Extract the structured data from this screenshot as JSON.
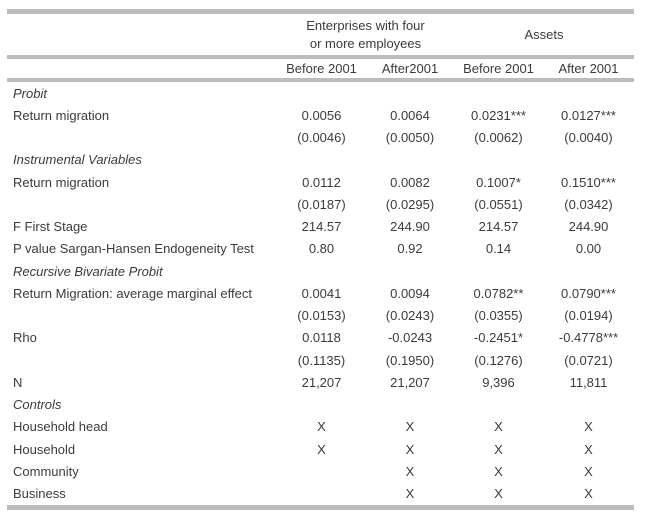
{
  "table": {
    "header": {
      "groups": [
        {
          "label": "Enterprises with four or more employees"
        },
        {
          "label": "Assets"
        }
      ],
      "columns": [
        "Before 2001",
        "After2001",
        "Before 2001",
        "After 2001"
      ]
    },
    "rows": [
      {
        "label": "Probit",
        "section": true,
        "values": [
          "",
          "",
          "",
          ""
        ]
      },
      {
        "label": "Return migration",
        "section": false,
        "values": [
          "0.0056",
          "0.0064",
          "0.0231***",
          "0.0127***"
        ]
      },
      {
        "label": "",
        "section": false,
        "values": [
          "(0.0046)",
          "(0.0050)",
          "(0.0062)",
          "(0.0040)"
        ]
      },
      {
        "label": "Instrumental Variables",
        "section": true,
        "values": [
          "",
          "",
          "",
          ""
        ]
      },
      {
        "label": "Return migration",
        "section": false,
        "values": [
          "0.0112",
          "0.0082",
          "0.1007*",
          "0.1510***"
        ]
      },
      {
        "label": "",
        "section": false,
        "values": [
          "(0.0187)",
          "(0.0295)",
          "(0.0551)",
          "(0.0342)"
        ]
      },
      {
        "label": "F First Stage",
        "section": false,
        "values": [
          "214.57",
          "244.90",
          "214.57",
          "244.90"
        ]
      },
      {
        "label": "P value Sargan-Hansen Endogeneity Test",
        "section": false,
        "values": [
          "0.80",
          "0.92",
          "0.14",
          "0.00"
        ]
      },
      {
        "label": "Recursive Bivariate Probit",
        "section": true,
        "values": [
          "",
          "",
          "",
          ""
        ]
      },
      {
        "label": "Return Migration: average marginal effect",
        "section": false,
        "values": [
          "0.0041",
          "0.0094",
          "0.0782**",
          "0.0790***"
        ]
      },
      {
        "label": "",
        "section": false,
        "values": [
          "(0.0153)",
          "(0.0243)",
          "(0.0355)",
          "(0.0194)"
        ]
      },
      {
        "label": "Rho",
        "section": false,
        "values": [
          "0.0118",
          "-0.0243",
          "-0.2451*",
          "-0.4778***"
        ]
      },
      {
        "label": "",
        "section": false,
        "values": [
          "(0.1135)",
          "(0.1950)",
          "(0.1276)",
          "(0.0721)"
        ]
      },
      {
        "label": "N",
        "section": false,
        "values": [
          "21,207",
          "21,207",
          "9,396",
          "11,811"
        ]
      },
      {
        "label": "Controls",
        "section": true,
        "values": [
          "",
          "",
          "",
          ""
        ]
      },
      {
        "label": "Household head",
        "section": false,
        "values": [
          "X",
          "X",
          "X",
          "X"
        ]
      },
      {
        "label": "Household",
        "section": false,
        "values": [
          "X",
          "X",
          "X",
          "X"
        ]
      },
      {
        "label": "Community",
        "section": false,
        "values": [
          "",
          "X",
          "X",
          "X"
        ]
      },
      {
        "label": "Business",
        "section": false,
        "values": [
          "",
          "X",
          "X",
          "X"
        ]
      }
    ],
    "colors": {
      "rule": "#bcbcbd",
      "text": "#3b3b3d"
    }
  }
}
